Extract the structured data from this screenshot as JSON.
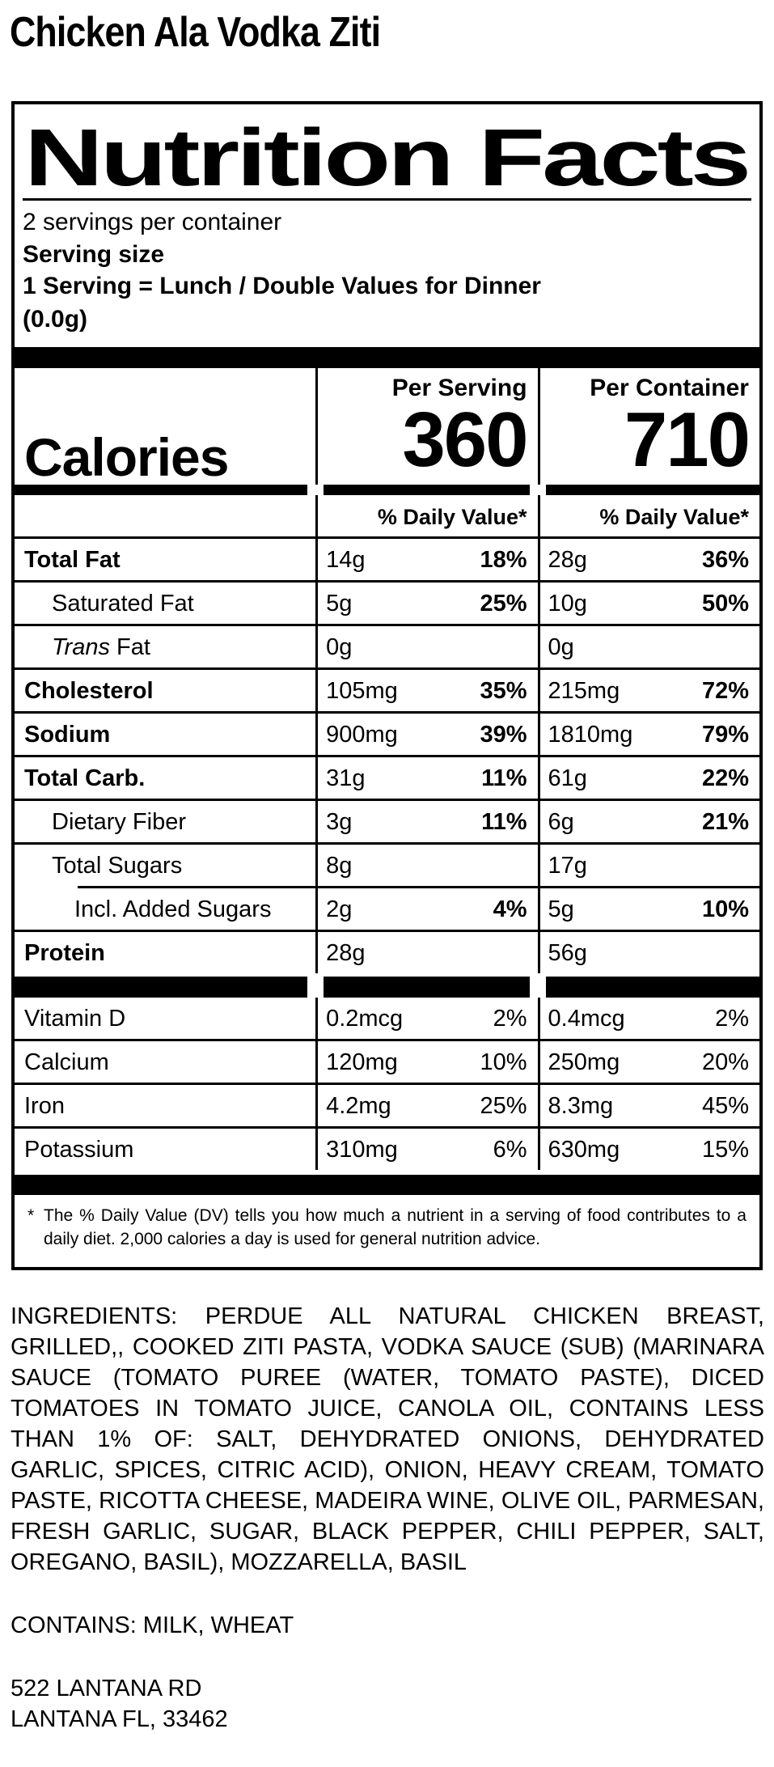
{
  "product_title": "Chicken Ala Vodka Ziti",
  "label": {
    "title": "Nutrition Facts",
    "servings_per_container": "2 servings per container",
    "serving_size_label": "Serving size",
    "serving_statement_line1": "1 Serving = Lunch / Double Values for Dinner",
    "serving_statement_line2": "(0.0g)",
    "per_serving_header": "Per Serving",
    "per_container_header": "Per Container",
    "calories_label": "Calories",
    "calories_per_serving": "360",
    "calories_per_container": "710",
    "daily_value_header": "% Daily Value*",
    "rows": [
      {
        "name": "Total Fat",
        "sa": "14g",
        "sdv": "18%",
        "ca": "28g",
        "cdv": "36%"
      },
      {
        "name": "Saturated Fat",
        "sa": "5g",
        "sdv": "25%",
        "ca": "10g",
        "cdv": "50%"
      },
      {
        "name_italic": "Trans",
        "name": " Fat",
        "sa": "0g",
        "ca": "0g"
      },
      {
        "name": "Cholesterol",
        "sa": "105mg",
        "sdv": "35%",
        "ca": "215mg",
        "cdv": "72%"
      },
      {
        "name": "Sodium",
        "sa": "900mg",
        "sdv": "39%",
        "ca": "1810mg",
        "cdv": "79%"
      },
      {
        "name": "Total Carb.",
        "sa": "31g",
        "sdv": "11%",
        "ca": "61g",
        "cdv": "22%"
      },
      {
        "name": "Dietary Fiber",
        "sa": "3g",
        "sdv": "11%",
        "ca": "6g",
        "cdv": "21%"
      },
      {
        "name": "Total Sugars",
        "sa": "8g",
        "ca": "17g"
      },
      {
        "name": "Incl. Added Sugars",
        "sa": "2g",
        "sdv": "4%",
        "ca": "5g",
        "cdv": "10%"
      },
      {
        "name": "Protein",
        "sa": "28g",
        "ca": "56g"
      }
    ],
    "vitamins": [
      {
        "name": "Vitamin D",
        "sa": "0.2mcg",
        "sdv": "2%",
        "ca": "0.4mcg",
        "cdv": "2%"
      },
      {
        "name": "Calcium",
        "sa": "120mg",
        "sdv": "10%",
        "ca": "250mg",
        "cdv": "20%"
      },
      {
        "name": "Iron",
        "sa": "4.2mg",
        "sdv": "25%",
        "ca": "8.3mg",
        "cdv": "45%"
      },
      {
        "name": "Potassium",
        "sa": "310mg",
        "sdv": "6%",
        "ca": "630mg",
        "cdv": "15%"
      }
    ],
    "footnote_marker": "*",
    "footnote_text": "The % Daily Value (DV) tells you how much a nutrient in a serving of food contributes to a daily diet. 2,000 calories a day is used for general nutrition advice."
  },
  "ingredients": "INGREDIENTS: PERDUE ALL NATURAL CHICKEN BREAST, GRILLED,, COOKED ZITI PASTA, VODKA SAUCE (SUB) (MARINARA SAUCE (TOMATO PUREE (WATER, TOMATO PASTE), DICED TOMATOES IN TOMATO JUICE, CANOLA OIL, CONTAINS LESS THAN 1% OF: SALT, DEHYDRATED ONIONS, DEHYDRATED GARLIC, SPICES, CITRIC ACID), ONION, HEAVY CREAM, TOMATO PASTE, RICOTTA CHEESE, MADEIRA WINE, OLIVE OIL, PARMESAN, FRESH GARLIC, SUGAR, BLACK PEPPER, CHILI PEPPER, SALT, OREGANO, BASIL), MOZZARELLA, BASIL",
  "contains": "CONTAINS: MILK, WHEAT",
  "address_line1": "522 LANTANA RD",
  "address_line2": "LANTANA FL, 33462"
}
